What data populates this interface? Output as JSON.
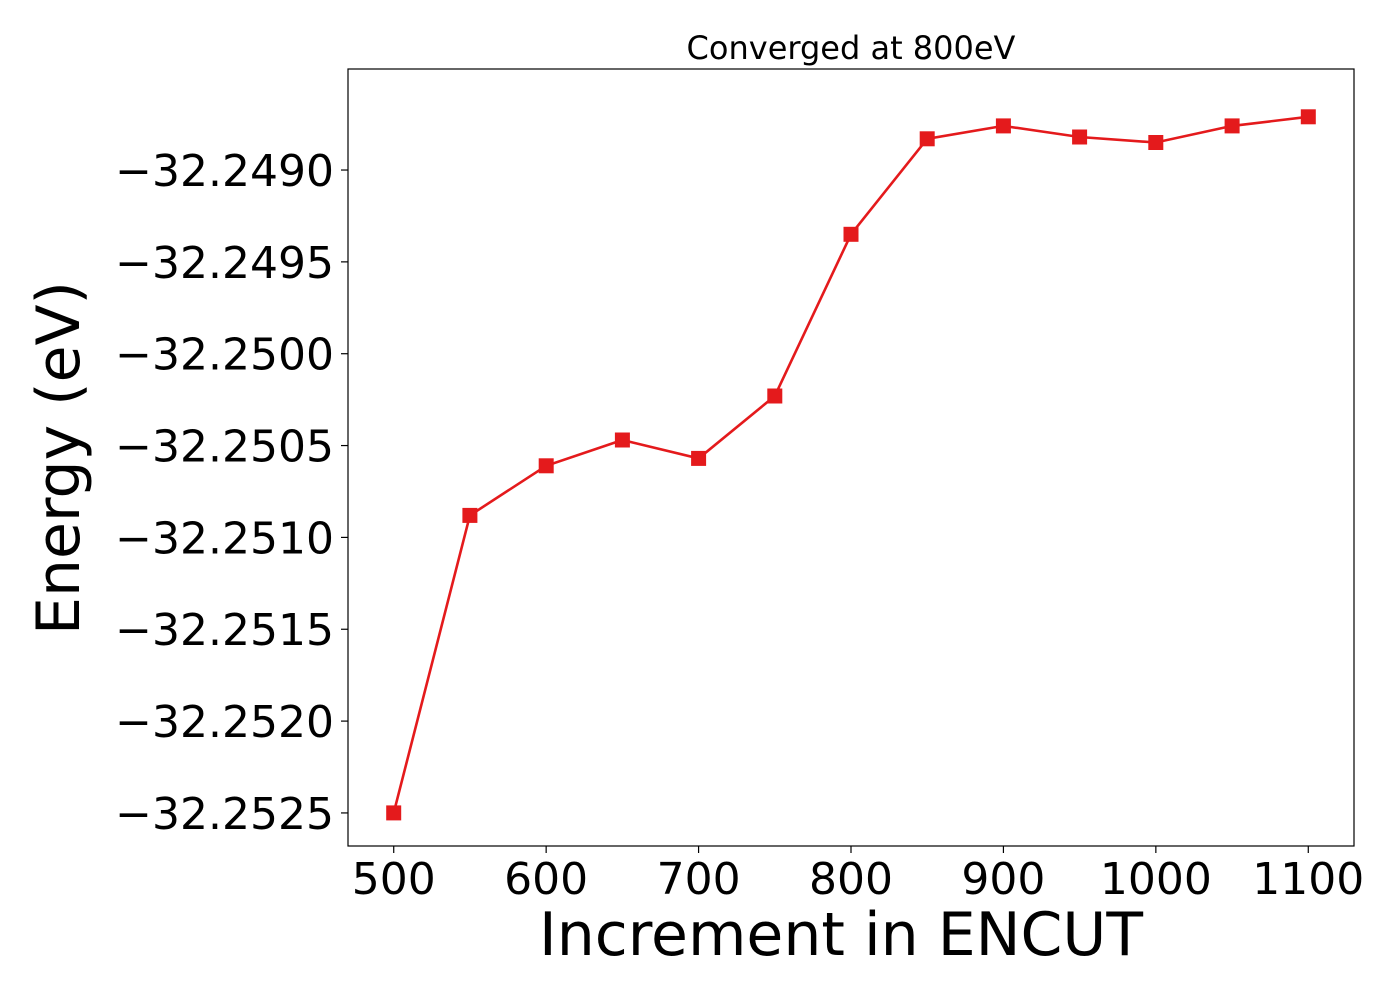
{
  "chart_data": {
    "type": "line",
    "title": "Converged at 800eV",
    "xlabel": "Increment in ENCUT",
    "ylabel": "Energy (eV)",
    "xlim": [
      470,
      1130
    ],
    "ylim": [
      -32.25268,
      -32.24845
    ],
    "xticks": [
      500,
      600,
      700,
      800,
      900,
      1000,
      1100
    ],
    "xtick_labels": [
      "500",
      "600",
      "700",
      "800",
      "900",
      "1000",
      "1100"
    ],
    "yticks": [
      -32.2525,
      -32.252,
      -32.2515,
      -32.251,
      -32.2505,
      -32.25,
      -32.2495,
      -32.249
    ],
    "ytick_labels": [
      "−32.2525",
      "−32.2520",
      "−32.2515",
      "−32.2510",
      "−32.2505",
      "−32.2500",
      "−32.2495",
      "−32.2490"
    ],
    "grid": false,
    "series": [
      {
        "marker": "square",
        "color": "#e41a1c",
        "x": [
          500,
          550,
          600,
          650,
          700,
          750,
          800,
          850,
          900,
          950,
          1000,
          1050,
          1100
        ],
        "y": [
          -32.2525,
          -32.25088,
          -32.25061,
          -32.25047,
          -32.25057,
          -32.25023,
          -32.24935,
          -32.24883,
          -32.24876,
          -32.24882,
          -32.24885,
          -32.24876,
          -32.24871
        ]
      }
    ]
  }
}
